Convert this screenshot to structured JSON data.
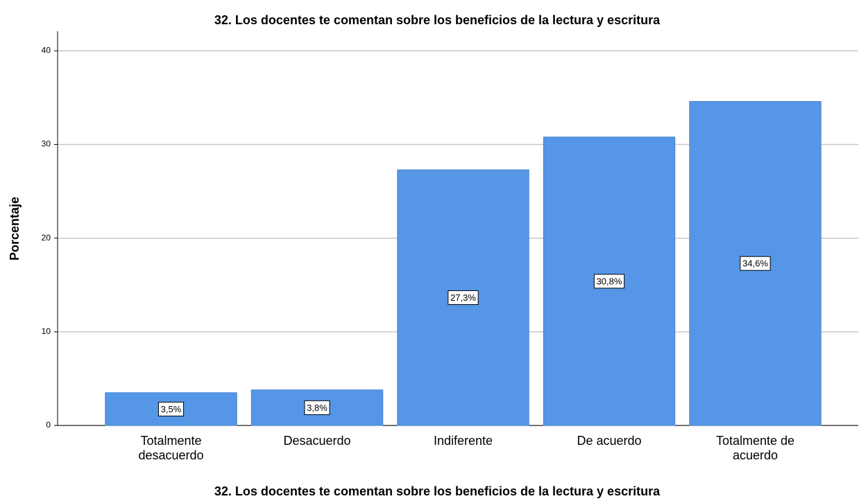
{
  "chart_data": {
    "type": "bar",
    "title": "32. Los docentes te comentan sobre los beneficios de la lectura y escritura",
    "x_label": "32. Los docentes te comentan sobre los beneficios de la lectura y escritura",
    "y_label": "Porcentaje",
    "categories": [
      "Totalmente desacuerdo",
      "Desacuerdo",
      "Indiferente",
      "De acuerdo",
      "Totalmente de acuerdo"
    ],
    "values": [
      3.5,
      3.8,
      27.3,
      30.8,
      34.6
    ],
    "value_labels": [
      "3,5%",
      "3,8%",
      "27,3%",
      "30,8%",
      "34,6%"
    ],
    "color": "#5596e6",
    "ylim": [
      0,
      42.1
    ],
    "yticks": [
      0,
      10,
      20,
      30,
      40
    ],
    "grid": true
  }
}
